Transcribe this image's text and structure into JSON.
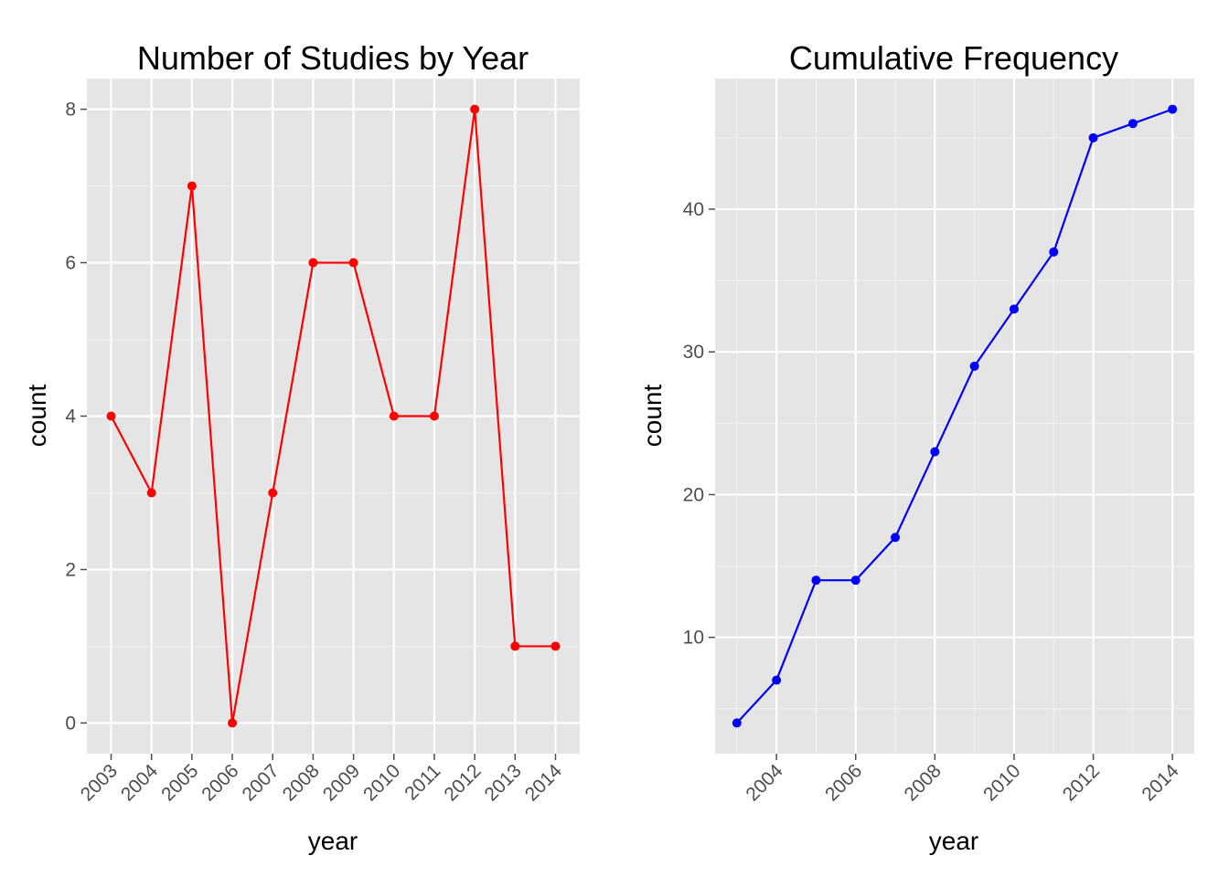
{
  "chart_data": [
    {
      "type": "line",
      "title": "Number of Studies by Year",
      "xlabel": "year",
      "ylabel": "count",
      "x_tick_labels": [
        "2003",
        "2004",
        "2005",
        "2006",
        "2007",
        "2008",
        "2009",
        "2010",
        "2011",
        "2012",
        "2013",
        "2014"
      ],
      "y_tick_labels": [
        "0",
        "2",
        "4",
        "6",
        "8"
      ],
      "series": [
        {
          "color": "#ff0000",
          "x": [
            2003,
            2004,
            2005,
            2006,
            2007,
            2008,
            2009,
            2010,
            2011,
            2012,
            2013,
            2014
          ],
          "values": [
            4,
            3,
            7,
            0,
            3,
            6,
            6,
            4,
            4,
            8,
            1,
            1
          ]
        }
      ],
      "xlim": [
        2002.4,
        2014.6
      ],
      "ylim": [
        -0.4,
        8.4
      ],
      "grid": true,
      "legend": "none"
    },
    {
      "type": "line",
      "title": "Cumulative Frequency",
      "xlabel": "year",
      "ylabel": "count",
      "x_tick_labels": [
        "2004",
        "2006",
        "2008",
        "2010",
        "2012",
        "2014"
      ],
      "y_tick_labels": [
        "10",
        "20",
        "30",
        "40"
      ],
      "series": [
        {
          "color": "#0000ff",
          "x": [
            2003,
            2004,
            2005,
            2006,
            2007,
            2008,
            2009,
            2010,
            2011,
            2012,
            2013,
            2014
          ],
          "values": [
            4,
            7,
            14,
            14,
            17,
            23,
            29,
            33,
            37,
            45,
            46,
            47
          ]
        }
      ],
      "xlim": [
        2002.45,
        2014.55
      ],
      "ylim": [
        1.85,
        49.15
      ],
      "grid": true,
      "legend": "none"
    }
  ]
}
